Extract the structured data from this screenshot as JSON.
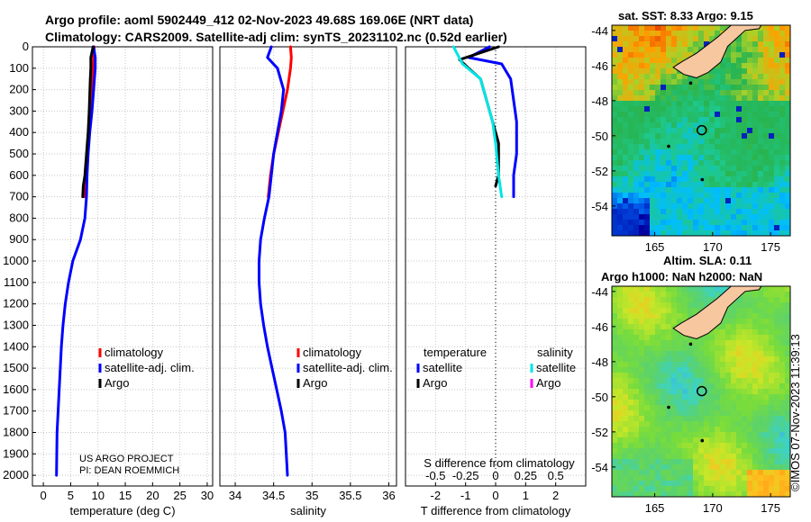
{
  "header": {
    "title_line1": "Argo profile: aoml 5902449_412 02-Nov-2023 49.68S 169.06E (NRT data)",
    "title_line2": "Climatology: CARS2009. Satellite-adj clim: synTS_20231102.nc (0.52d earlier)"
  },
  "colors": {
    "climatology": "#ff0000",
    "satellite": "#0000ff",
    "argo": "#000000",
    "temp_diff_satellite": "#00e5e5",
    "sal_diff_argo": "#ff00ff",
    "land": "#f7c7a0"
  },
  "chart_data": [
    {
      "type": "line",
      "name": "temperature",
      "xlabel": "temperature (deg C)",
      "ylabel": "",
      "xlim": [
        -2,
        31
      ],
      "ylim": [
        2050,
        0
      ],
      "xticks": [
        0,
        5,
        10,
        15,
        20,
        25,
        30
      ],
      "yticks": [
        0,
        100,
        200,
        300,
        400,
        500,
        600,
        700,
        800,
        900,
        1000,
        1100,
        1200,
        1300,
        1400,
        1500,
        1600,
        1700,
        1800,
        1900,
        2000
      ],
      "series": [
        {
          "name": "climatology",
          "color": "#ff0000",
          "x": [
            9.3,
            9.2,
            9.1,
            8.9,
            8.7,
            8.4,
            8.1,
            7.8,
            7.5
          ],
          "y": [
            0,
            50,
            100,
            200,
            300,
            400,
            500,
            600,
            700
          ]
        },
        {
          "name": "satellite-adj. clim.",
          "color": "#0000ff",
          "x": [
            9.2,
            9.5,
            9.5,
            9.2,
            8.9,
            8.5,
            8.2,
            8.0,
            7.9,
            7.6,
            6.8,
            5.4,
            4.6,
            4.0,
            3.6,
            3.3,
            3.1,
            2.9,
            2.7,
            2.5,
            2.4
          ],
          "y": [
            0,
            50,
            100,
            200,
            300,
            400,
            500,
            600,
            700,
            800,
            900,
            1000,
            1100,
            1200,
            1300,
            1400,
            1500,
            1600,
            1700,
            1800,
            2000
          ]
        },
        {
          "name": "Argo",
          "color": "#000000",
          "x": [
            9.1,
            8.7,
            8.7,
            8.6,
            8.4,
            8.2,
            7.9,
            7.6,
            7.3,
            7.2
          ],
          "y": [
            0,
            50,
            100,
            150,
            300,
            400,
            500,
            600,
            650,
            700
          ]
        }
      ],
      "legend": [
        "climatology",
        "satellite-adj. clim.",
        "Argo"
      ],
      "annotation_line1": "US ARGO PROJECT",
      "annotation_line2": "PI: DEAN ROEMMICH"
    },
    {
      "type": "line",
      "name": "salinity",
      "xlabel": "salinity",
      "xlim": [
        33.8,
        36.1
      ],
      "ylim": [
        2050,
        0
      ],
      "xticks": [
        34,
        34.5,
        35,
        35.5,
        36
      ],
      "series": [
        {
          "name": "climatology",
          "color": "#ff0000",
          "x": [
            34.72,
            34.73,
            34.72,
            34.68,
            34.62,
            34.56,
            34.5,
            34.46,
            34.43
          ],
          "y": [
            0,
            50,
            100,
            200,
            300,
            400,
            500,
            600,
            700
          ]
        },
        {
          "name": "satellite-adj. clim.",
          "color": "#0000ff",
          "x": [
            34.47,
            34.42,
            34.55,
            34.63,
            34.6,
            34.55,
            34.5,
            34.47,
            34.44,
            34.38,
            34.33,
            34.31,
            34.31,
            34.33,
            34.37,
            34.42,
            34.48,
            34.54,
            34.6,
            34.65,
            34.68
          ],
          "y": [
            0,
            50,
            100,
            200,
            300,
            400,
            500,
            600,
            700,
            800,
            900,
            1000,
            1100,
            1200,
            1300,
            1400,
            1500,
            1600,
            1700,
            1800,
            2000
          ]
        },
        {
          "name": "Argo",
          "color": "#000000",
          "x": [],
          "y": []
        }
      ],
      "legend": [
        "climatology",
        "satellite-adj. clim.",
        "Argo"
      ]
    },
    {
      "type": "line",
      "name": "difference from climatology",
      "xlabel": "T difference from climatology",
      "xlabel_top": "S difference from climatology",
      "xlim": [
        -3,
        3
      ],
      "ylim": [
        2050,
        0
      ],
      "xticks": [
        -2,
        -1,
        0,
        1,
        2
      ],
      "xticklabels_s": [
        "-0.5",
        "-0.25",
        "0",
        "0.25",
        "0.5"
      ],
      "xticks_s_pos": [
        -2,
        -1,
        0,
        1,
        2
      ],
      "series": [
        {
          "name": "temperature satellite",
          "color": "#0000ff",
          "x": [
            -0.2,
            -0.9,
            0.2,
            0.5,
            0.6,
            0.7,
            0.7,
            0.7,
            0.6,
            0.6,
            0.6
          ],
          "y": [
            0,
            50,
            80,
            150,
            250,
            350,
            400,
            500,
            600,
            650,
            700
          ]
        },
        {
          "name": "temperature Argo",
          "color": "#000000",
          "x": [
            0.1,
            -1.2,
            -0.9,
            -0.5,
            -0.3,
            -0.1,
            0.1,
            0.1,
            0.1,
            0.0
          ],
          "y": [
            0,
            60,
            100,
            150,
            250,
            350,
            450,
            550,
            600,
            650
          ]
        },
        {
          "name": "salinity satellite",
          "color": "#00e5e5",
          "x": [
            -1.4,
            -1.1,
            -0.5,
            -0.3,
            -0.1,
            0.0,
            0.1,
            0.2
          ],
          "y": [
            0,
            80,
            150,
            250,
            350,
            450,
            600,
            700
          ]
        },
        {
          "name": "salinity Argo",
          "color": "#ff00ff",
          "x": [],
          "y": []
        }
      ],
      "legend_left_title": "temperature",
      "legend_right_title": "salinity",
      "legend_left": [
        "satellite",
        "Argo"
      ],
      "legend_right": [
        "satellite",
        "Argo"
      ]
    },
    {
      "type": "heatmap",
      "name": "satellite SST map",
      "title": "sat. SST: 8.33 Argo: 9.15",
      "xticks": [
        165,
        170,
        175
      ],
      "yticks": [
        -44,
        -46,
        -48,
        -50,
        -52,
        -54
      ],
      "xlim": [
        161.3,
        176.7
      ],
      "ylim": [
        -55.7,
        -43.7
      ],
      "profile_location": [
        169.06,
        -49.68
      ]
    },
    {
      "type": "heatmap",
      "name": "altimetry SLA map",
      "title_line1": "Altim. SLA: 0.11",
      "title_line2": "Argo h1000: NaN h2000: NaN",
      "xticks": [
        165,
        170,
        175
      ],
      "yticks": [
        -44,
        -46,
        -48,
        -50,
        -52,
        -54
      ],
      "xlim": [
        161.3,
        176.7
      ],
      "ylim": [
        -55.7,
        -43.7
      ],
      "profile_location": [
        169.06,
        -49.68
      ]
    }
  ],
  "footer": {
    "side_text": "©IMOS 07-Nov-2023 11:39:13"
  }
}
